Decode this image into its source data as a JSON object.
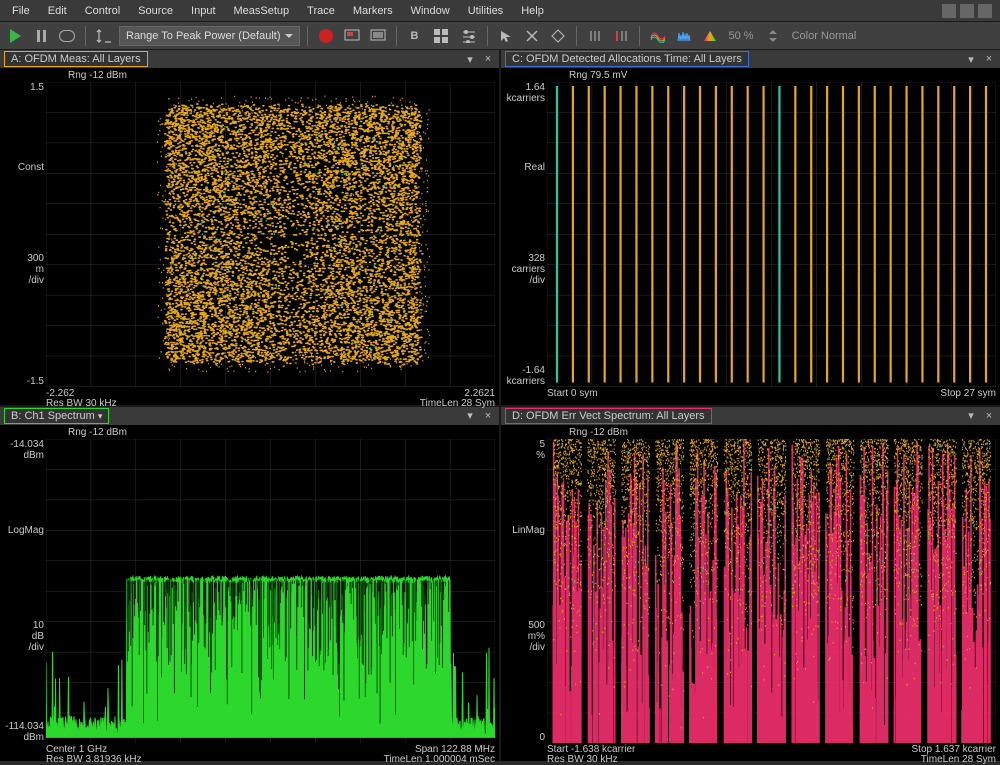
{
  "menubar": [
    "File",
    "Edit",
    "Control",
    "Source",
    "Input",
    "MeasSetup",
    "Trace",
    "Markers",
    "Window",
    "Utilities",
    "Help"
  ],
  "toolbar": {
    "dropdown": "Range To Peak Power (Default)",
    "percent": "50 %",
    "color_mode": "Color Normal"
  },
  "colors": {
    "yellow": "#e6a817",
    "green": "#2bd82b",
    "blue": "#3b6fd6",
    "magenta": "#e82e6a",
    "teal": "#2ac7a8",
    "grid": "#333333",
    "bg": "#000000"
  },
  "panelA": {
    "title": "A: OFDM Meas: All Layers",
    "title_border": "#e6a817",
    "rng": "Rng -12 dBm",
    "y_top": "1.5",
    "y_mid1": "Const",
    "y_mid2a": "300",
    "y_mid2b": "m",
    "y_mid2c": "/div",
    "y_bot": "-1.5",
    "x_left_a": "-2.262",
    "x_left_b": "Res BW 30 kHz",
    "x_right_a": "2.2621",
    "x_right_b": "TimeLen 28  Sym"
  },
  "panelB": {
    "title": "B: Ch1 Spectrum",
    "title_border": "#2bd82b",
    "rng": "Rng -12 dBm",
    "y_top_a": "-14.034",
    "y_top_b": "dBm",
    "y_mid": "LogMag",
    "y_mid2a": "10",
    "y_mid2b": "dB",
    "y_mid2c": "/div",
    "y_bot_a": "-114.034",
    "y_bot_b": "dBm",
    "x_left_a": "Center 1 GHz",
    "x_left_b": "Res BW 3.81936 kHz",
    "x_right_a": "Span 122.88 MHz",
    "x_right_b": "TimeLen 1.000004 mSec"
  },
  "panelC": {
    "title": "C: OFDM Detected Allocations Time: All Layers",
    "title_border": "#3b6fd6",
    "rng": "Rng 79.5 mV",
    "y_top_a": "1.64",
    "y_top_b": "kcarriers",
    "y_mid": "Real",
    "y_mid2a": "328",
    "y_mid2b": "carriers",
    "y_mid2c": "/div",
    "y_bot_a": "-1.64",
    "y_bot_b": "kcarriers",
    "x_left": "Start 0  sym",
    "x_right": "Stop 27  sym",
    "lines": {
      "n": 27,
      "teal_slots": [
        0,
        14
      ],
      "color_main": "#e6a817",
      "color_alt": "#2ac7a8"
    }
  },
  "panelD": {
    "title": "D: OFDM Err Vect Spectrum: All Layers",
    "title_border": "#e82e6a",
    "rng": "Rng -12 dBm",
    "y_top_a": "5",
    "y_top_b": "%",
    "y_mid": "LinMag",
    "y_mid2a": "500",
    "y_mid2b": "m%",
    "y_mid2c": "/div",
    "y_bot": "0",
    "x_left_a": "Start -1.638 kcarrier",
    "x_left_b": "Res BW 30 kHz",
    "x_right_a": "Stop 1.637 kcarrier",
    "x_right_b": "TimeLen 28  Sym"
  }
}
